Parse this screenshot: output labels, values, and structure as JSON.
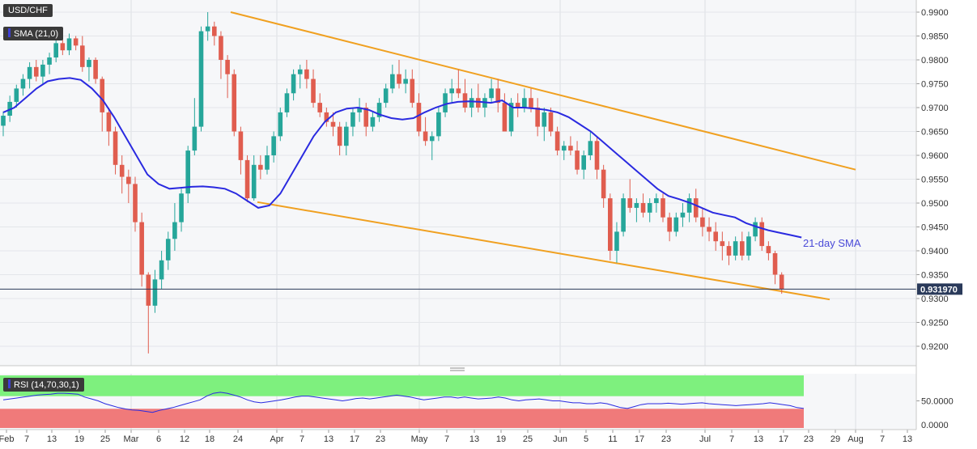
{
  "chart_data": {
    "type": "candlestick",
    "symbol": "USD/CHF",
    "sma_label": "SMA (21,0)",
    "sma_annotation": "21-day SMA",
    "last_price_label": "0.931970",
    "rsi_label": "RSI (14,70,30,1)",
    "rsi_value_label": "50.0000",
    "rsi_zero_label": "0.0000",
    "y_ticks": [
      "0.9900",
      "0.9850",
      "0.9800",
      "0.9750",
      "0.9700",
      "0.9650",
      "0.9600",
      "0.9550",
      "0.9500",
      "0.9450",
      "0.9400",
      "0.9350",
      "0.9300",
      "0.9250",
      "0.9200"
    ],
    "ylim": [
      0.9155,
      0.9935
    ],
    "x_ticks": [
      "Feb",
      "7",
      "13",
      "19",
      "25",
      "Mar",
      "6",
      "12",
      "18",
      "24",
      "Apr",
      "7",
      "13",
      "17",
      "23",
      "May",
      "7",
      "13",
      "19",
      "25",
      "Jun",
      "5",
      "11",
      "17",
      "23",
      "Jul",
      "7",
      "13",
      "17",
      "23",
      "29",
      "Aug",
      "7",
      "13"
    ],
    "colors": {
      "up": "#26a69a",
      "down": "#e05d4f",
      "sma": "#2a2ae0",
      "channel": "#f0a020",
      "rsi_line": "#2a2ae0",
      "rsi_upper": "#7ef07e",
      "rsi_lower": "#f07a7a",
      "last_price_box": "#2a3a5a"
    },
    "channel": {
      "upper": [
        [
          0,
          0.99
        ],
        [
          1.0,
          0.957
        ]
      ],
      "lower": [
        [
          0,
          0.9502
        ],
        [
          1.0,
          0.9298
        ]
      ]
    },
    "candles": [
      [
        0.9662,
        0.9692,
        0.964,
        0.9683
      ],
      [
        0.9683,
        0.9725,
        0.967,
        0.9712
      ],
      [
        0.9712,
        0.9748,
        0.97,
        0.974
      ],
      [
        0.974,
        0.977,
        0.9725,
        0.976
      ],
      [
        0.976,
        0.9795,
        0.974,
        0.9785
      ],
      [
        0.9785,
        0.98,
        0.9755,
        0.9765
      ],
      [
        0.9765,
        0.98,
        0.975,
        0.979
      ],
      [
        0.979,
        0.9815,
        0.977,
        0.9805
      ],
      [
        0.9805,
        0.985,
        0.9795,
        0.9835
      ],
      [
        0.9835,
        0.985,
        0.981,
        0.982
      ],
      [
        0.982,
        0.9855,
        0.981,
        0.9845
      ],
      [
        0.9845,
        0.985,
        0.982,
        0.983
      ],
      [
        0.983,
        0.985,
        0.9775,
        0.9785
      ],
      [
        0.9785,
        0.9805,
        0.9755,
        0.98
      ],
      [
        0.98,
        0.9805,
        0.975,
        0.976
      ],
      [
        0.976,
        0.9765,
        0.965,
        0.969
      ],
      [
        0.969,
        0.97,
        0.962,
        0.965
      ],
      [
        0.965,
        0.966,
        0.956,
        0.958
      ],
      [
        0.958,
        0.96,
        0.952,
        0.9555
      ],
      [
        0.9555,
        0.957,
        0.95,
        0.954
      ],
      [
        0.954,
        0.9555,
        0.944,
        0.946
      ],
      [
        0.946,
        0.948,
        0.9325,
        0.935
      ],
      [
        0.935,
        0.9355,
        0.9185,
        0.9285
      ],
      [
        0.9285,
        0.936,
        0.927,
        0.934
      ],
      [
        0.934,
        0.94,
        0.932,
        0.938
      ],
      [
        0.938,
        0.944,
        0.936,
        0.9425
      ],
      [
        0.9425,
        0.95,
        0.94,
        0.946
      ],
      [
        0.946,
        0.953,
        0.944,
        0.952
      ],
      [
        0.952,
        0.962,
        0.95,
        0.961
      ],
      [
        0.961,
        0.972,
        0.96,
        0.966
      ],
      [
        0.966,
        0.987,
        0.965,
        0.986
      ],
      [
        0.986,
        0.99,
        0.984,
        0.987
      ],
      [
        0.987,
        0.988,
        0.983,
        0.985
      ],
      [
        0.985,
        0.986,
        0.976,
        0.98
      ],
      [
        0.98,
        0.981,
        0.972,
        0.977
      ],
      [
        0.977,
        0.978,
        0.964,
        0.965
      ],
      [
        0.965,
        0.966,
        0.956,
        0.959
      ],
      [
        0.959,
        0.96,
        0.9502,
        0.951
      ],
      [
        0.951,
        0.96,
        0.9505,
        0.958
      ],
      [
        0.958,
        0.96,
        0.955,
        0.957
      ],
      [
        0.957,
        0.962,
        0.956,
        0.96
      ],
      [
        0.96,
        0.965,
        0.9585,
        0.964
      ],
      [
        0.964,
        0.97,
        0.963,
        0.969
      ],
      [
        0.969,
        0.974,
        0.968,
        0.973
      ],
      [
        0.973,
        0.978,
        0.9715,
        0.977
      ],
      [
        0.977,
        0.979,
        0.974,
        0.978
      ],
      [
        0.978,
        0.98,
        0.974,
        0.976
      ],
      [
        0.976,
        0.978,
        0.97,
        0.971
      ],
      [
        0.971,
        0.973,
        0.968,
        0.969
      ],
      [
        0.969,
        0.97,
        0.966,
        0.967
      ],
      [
        0.967,
        0.969,
        0.964,
        0.966
      ],
      [
        0.966,
        0.967,
        0.96,
        0.962
      ],
      [
        0.962,
        0.967,
        0.96,
        0.966
      ],
      [
        0.966,
        0.97,
        0.964,
        0.969
      ],
      [
        0.969,
        0.972,
        0.967,
        0.97
      ],
      [
        0.97,
        0.971,
        0.964,
        0.966
      ],
      [
        0.966,
        0.969,
        0.965,
        0.968
      ],
      [
        0.968,
        0.972,
        0.967,
        0.971
      ],
      [
        0.971,
        0.975,
        0.97,
        0.974
      ],
      [
        0.974,
        0.979,
        0.973,
        0.977
      ],
      [
        0.977,
        0.98,
        0.974,
        0.975
      ],
      [
        0.975,
        0.978,
        0.973,
        0.976
      ],
      [
        0.976,
        0.978,
        0.97,
        0.971
      ],
      [
        0.971,
        0.973,
        0.964,
        0.965
      ],
      [
        0.965,
        0.968,
        0.962,
        0.963
      ],
      [
        0.963,
        0.965,
        0.959,
        0.964
      ],
      [
        0.964,
        0.97,
        0.963,
        0.969
      ],
      [
        0.969,
        0.974,
        0.968,
        0.973
      ],
      [
        0.973,
        0.976,
        0.971,
        0.974
      ],
      [
        0.974,
        0.978,
        0.972,
        0.973
      ],
      [
        0.973,
        0.976,
        0.969,
        0.97
      ],
      [
        0.97,
        0.974,
        0.968,
        0.972
      ],
      [
        0.972,
        0.975,
        0.969,
        0.97
      ],
      [
        0.97,
        0.973,
        0.968,
        0.972
      ],
      [
        0.972,
        0.976,
        0.971,
        0.974
      ],
      [
        0.974,
        0.976,
        0.969,
        0.971
      ],
      [
        0.971,
        0.973,
        0.965,
        0.965
      ],
      [
        0.965,
        0.972,
        0.964,
        0.971
      ],
      [
        0.971,
        0.973,
        0.968,
        0.97
      ],
      [
        0.97,
        0.974,
        0.969,
        0.972
      ],
      [
        0.972,
        0.974,
        0.969,
        0.97
      ],
      [
        0.97,
        0.972,
        0.964,
        0.966
      ],
      [
        0.966,
        0.97,
        0.963,
        0.969
      ],
      [
        0.969,
        0.97,
        0.964,
        0.965
      ],
      [
        0.965,
        0.966,
        0.96,
        0.961
      ],
      [
        0.961,
        0.963,
        0.959,
        0.962
      ],
      [
        0.962,
        0.964,
        0.96,
        0.961
      ],
      [
        0.961,
        0.963,
        0.956,
        0.957
      ],
      [
        0.957,
        0.961,
        0.955,
        0.96
      ],
      [
        0.96,
        0.965,
        0.959,
        0.963
      ],
      [
        0.963,
        0.964,
        0.955,
        0.957
      ],
      [
        0.957,
        0.958,
        0.949,
        0.951
      ],
      [
        0.951,
        0.952,
        0.938,
        0.94
      ],
      [
        0.94,
        0.946,
        0.9375,
        0.944
      ],
      [
        0.944,
        0.952,
        0.943,
        0.951
      ],
      [
        0.951,
        0.955,
        0.948,
        0.949
      ],
      [
        0.949,
        0.951,
        0.946,
        0.95
      ],
      [
        0.95,
        0.952,
        0.947,
        0.948
      ],
      [
        0.948,
        0.951,
        0.946,
        0.95
      ],
      [
        0.95,
        0.952,
        0.948,
        0.951
      ],
      [
        0.951,
        0.952,
        0.946,
        0.947
      ],
      [
        0.947,
        0.948,
        0.942,
        0.944
      ],
      [
        0.944,
        0.948,
        0.943,
        0.947
      ],
      [
        0.947,
        0.95,
        0.945,
        0.948
      ],
      [
        0.948,
        0.952,
        0.946,
        0.951
      ],
      [
        0.951,
        0.953,
        0.946,
        0.947
      ],
      [
        0.947,
        0.949,
        0.943,
        0.945
      ],
      [
        0.945,
        0.947,
        0.942,
        0.944
      ],
      [
        0.944,
        0.946,
        0.94,
        0.942
      ],
      [
        0.942,
        0.944,
        0.938,
        0.941
      ],
      [
        0.941,
        0.942,
        0.937,
        0.939
      ],
      [
        0.939,
        0.943,
        0.938,
        0.942
      ],
      [
        0.942,
        0.944,
        0.938,
        0.939
      ],
      [
        0.939,
        0.944,
        0.938,
        0.943
      ],
      [
        0.943,
        0.947,
        0.942,
        0.946
      ],
      [
        0.946,
        0.947,
        0.94,
        0.941
      ],
      [
        0.941,
        0.942,
        0.938,
        0.9395
      ],
      [
        0.9395,
        0.94,
        0.933,
        0.935
      ],
      [
        0.935,
        0.9355,
        0.931,
        0.932
      ]
    ],
    "sma": [
      0.969,
      0.97,
      0.972,
      0.974,
      0.9755,
      0.976,
      0.9762,
      0.9758,
      0.974,
      0.9715,
      0.968,
      0.964,
      0.96,
      0.956,
      0.954,
      0.953,
      0.9532,
      0.9534,
      0.9535,
      0.9533,
      0.953,
      0.952,
      0.9505,
      0.949,
      0.9495,
      0.952,
      0.956,
      0.96,
      0.964,
      0.967,
      0.969,
      0.9698,
      0.97,
      0.9695,
      0.9685,
      0.9678,
      0.9675,
      0.9678,
      0.969,
      0.97,
      0.9708,
      0.9712,
      0.9713,
      0.9712,
      0.971,
      0.9715,
      0.97,
      0.97,
      0.9698,
      0.9695,
      0.969,
      0.968,
      0.9665,
      0.965,
      0.963,
      0.961,
      0.959,
      0.957,
      0.955,
      0.953,
      0.9515,
      0.9508,
      0.95,
      0.949,
      0.948,
      0.9475,
      0.947,
      0.9458,
      0.945,
      0.9443,
      0.9438,
      0.9433,
      0.9428
    ],
    "sma_end_index": 121,
    "rsi": [
      52,
      54,
      56,
      58,
      60,
      62,
      63,
      64,
      66,
      66,
      65,
      64,
      58,
      54,
      50,
      44,
      40,
      36,
      33,
      31,
      30,
      28,
      26,
      30,
      33,
      36,
      40,
      44,
      48,
      52,
      60,
      66,
      68,
      66,
      62,
      58,
      52,
      48,
      46,
      48,
      50,
      52,
      55,
      58,
      60,
      60,
      58,
      56,
      54,
      52,
      50,
      52,
      55,
      56,
      54,
      56,
      58,
      60,
      62,
      60,
      58,
      55,
      52,
      54,
      56,
      58,
      58,
      56,
      58,
      56,
      54,
      55,
      56,
      58,
      56,
      52,
      50,
      52,
      53,
      54,
      52,
      50,
      50,
      48,
      46,
      46,
      44,
      44,
      46,
      44,
      40,
      36,
      34,
      38,
      42,
      44,
      44,
      44,
      45,
      44,
      43,
      44,
      45,
      46,
      44,
      43,
      42,
      41,
      40,
      41,
      42,
      43,
      44,
      46,
      44,
      42,
      40,
      36,
      34
    ],
    "rsi_levels": [
      70,
      30
    ]
  }
}
